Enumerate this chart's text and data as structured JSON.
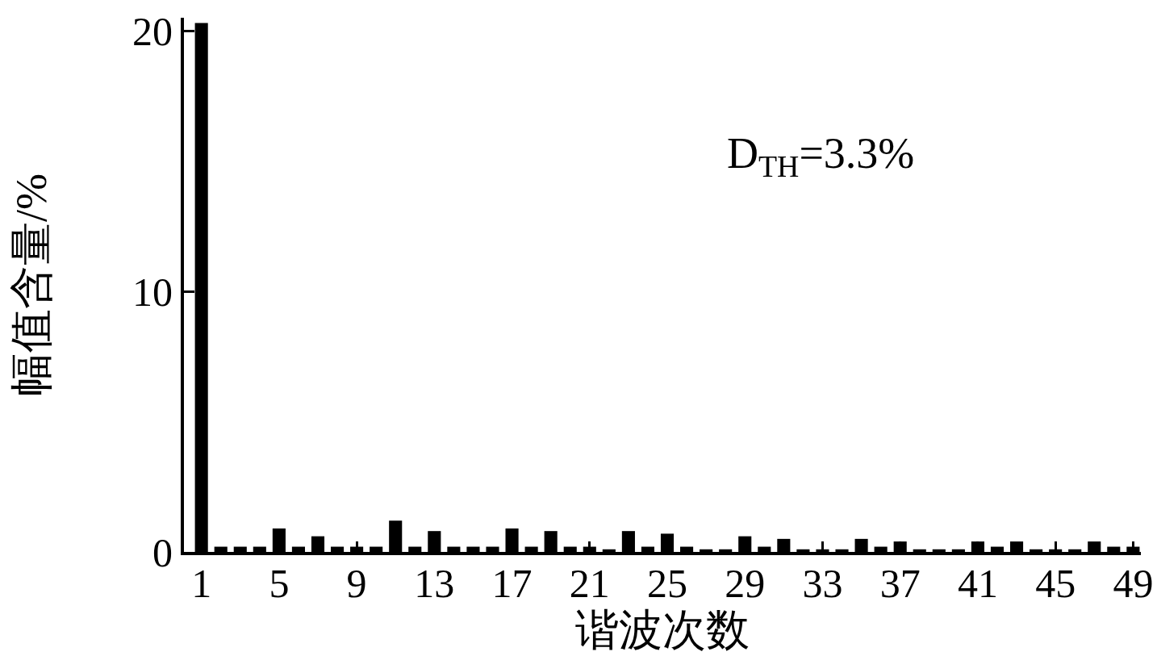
{
  "chart_data": {
    "type": "bar",
    "xlabel": "谐波次数",
    "ylabel": "幅值含量/%",
    "annotations": [
      "D$_{TH}$=3.3%"
    ],
    "x": [
      1,
      2,
      3,
      4,
      5,
      6,
      7,
      8,
      9,
      10,
      11,
      12,
      13,
      14,
      15,
      16,
      17,
      18,
      19,
      20,
      21,
      22,
      23,
      24,
      25,
      26,
      27,
      28,
      29,
      30,
      31,
      32,
      33,
      34,
      35,
      36,
      37,
      38,
      39,
      40,
      41,
      42,
      43,
      44,
      45,
      46,
      47,
      48,
      49
    ],
    "values": [
      20.3,
      0.2,
      0.2,
      0.2,
      0.9,
      0.2,
      0.6,
      0.2,
      0.2,
      0.2,
      1.2,
      0.2,
      0.8,
      0.2,
      0.2,
      0.2,
      0.9,
      0.2,
      0.8,
      0.2,
      0.2,
      0.1,
      0.8,
      0.2,
      0.7,
      0.2,
      0.1,
      0.1,
      0.6,
      0.2,
      0.5,
      0.1,
      0.1,
      0.1,
      0.5,
      0.2,
      0.4,
      0.1,
      0.1,
      0.1,
      0.4,
      0.2,
      0.4,
      0.1,
      0.1,
      0.1,
      0.4,
      0.2,
      0.2
    ],
    "color": "#000000",
    "xlim": [
      0.1,
      49.4
    ],
    "xticks": [
      1,
      5,
      9,
      13,
      17,
      21,
      25,
      29,
      33,
      37,
      41,
      45,
      49
    ],
    "ylim": [
      0,
      20.5
    ],
    "yticks": [
      0,
      10,
      20
    ]
  }
}
